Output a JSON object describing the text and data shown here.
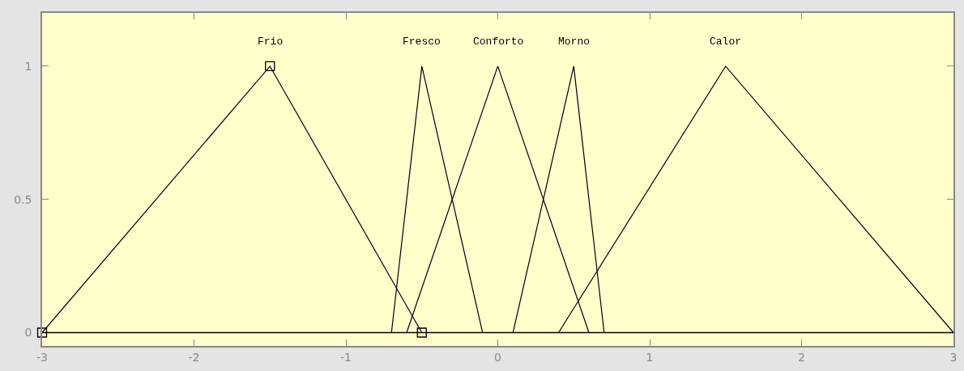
{
  "chart_data": {
    "type": "line",
    "series": [
      {
        "name": "Frio",
        "color": "#000000",
        "x": [
          -3,
          -1.5,
          -0.5
        ],
        "values": [
          0,
          1,
          0
        ],
        "marker": "square"
      },
      {
        "name": "Fresco",
        "color": "#000000",
        "x": [
          -0.7,
          -0.5,
          -0.1
        ],
        "values": [
          0,
          1,
          0
        ]
      },
      {
        "name": "Conforto",
        "color": "#000000",
        "x": [
          -0.6,
          0,
          0.6
        ],
        "values": [
          0,
          1,
          0
        ]
      },
      {
        "name": "Morno",
        "color": "#000000",
        "x": [
          0.1,
          0.5,
          0.7
        ],
        "values": [
          0,
          1,
          0
        ]
      },
      {
        "name": "Calor",
        "color": "#000000",
        "x": [
          0.4,
          1.5,
          3
        ],
        "values": [
          0,
          1,
          0
        ]
      }
    ],
    "xlim": [
      -3,
      3
    ],
    "xticks": [
      -3,
      -2,
      -1,
      0,
      1,
      2,
      3
    ],
    "ylim": [
      -0.05,
      1.2
    ],
    "yticks": [
      0,
      0.5,
      1
    ],
    "ref_lines": [
      {
        "axis": "y",
        "value": 0,
        "color": "#000000"
      }
    ],
    "grid": false,
    "legend": false,
    "marker": "none",
    "line_style": "solid"
  }
}
